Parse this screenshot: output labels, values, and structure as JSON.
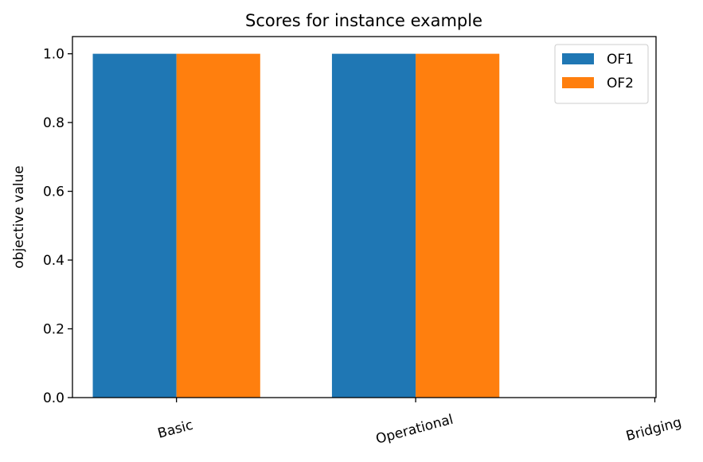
{
  "chart_data": {
    "type": "bar",
    "title": "Scores for instance example",
    "xlabel": "",
    "ylabel": "objective value",
    "categories": [
      "Basic",
      "Operational",
      "Bridging"
    ],
    "series": [
      {
        "name": "OF1",
        "values": [
          1.0,
          1.0,
          0.0
        ],
        "color": "#1f77b4"
      },
      {
        "name": "OF2",
        "values": [
          1.0,
          1.0,
          0.0
        ],
        "color": "#ff7f0e"
      }
    ],
    "ylim": [
      0,
      1.05
    ],
    "yticks": [
      0.0,
      0.2,
      0.4,
      0.6,
      0.8,
      1.0
    ],
    "ytick_labels": [
      "0.0",
      "0.2",
      "0.4",
      "0.6",
      "0.8",
      "1.0"
    ],
    "xtick_rotation_deg": 15,
    "grid": false,
    "legend_position": "top-right"
  }
}
